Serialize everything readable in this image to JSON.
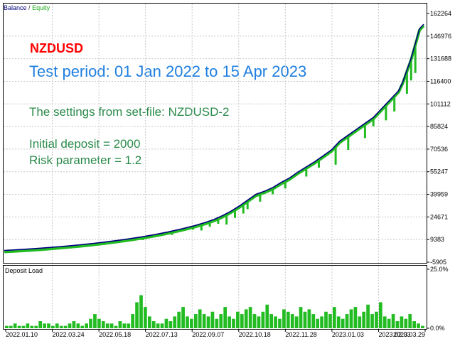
{
  "chart_data": [
    {
      "type": "line",
      "legend": {
        "balance_label": "Balance",
        "separator": "/",
        "equity_label": "Equity",
        "placement": "top-left"
      },
      "colors": {
        "balance": "#00007f",
        "equity": "#22bb22",
        "grid": "#c8c8c8"
      },
      "annotations": {
        "symbol": "NZDUSD",
        "period": "Test period: 01 Jan 2022 to 15 Apr 2023",
        "settings": "The settings from set-file: NZDUSD-2",
        "deposit": "Initial deposit = 2000",
        "risk": "Risk parameter = 1.2"
      },
      "ylim": [
        -5905,
        162264
      ],
      "yticks": [
        "162264",
        "146976",
        "131688",
        "116400",
        "101112",
        "85824",
        "70536",
        "55247",
        "39959",
        "24671",
        "9383",
        "-5905"
      ],
      "xticks": [
        "2022.01.10",
        "2022.03.24",
        "2022.05.18",
        "2022.07.13",
        "2022.09.07",
        "2022.10.18",
        "2022.11.28",
        "2023.01.03",
        "2023.02.03",
        "2023.03.29"
      ],
      "grid": true,
      "balance": [
        [
          0,
          2000
        ],
        [
          3,
          2500
        ],
        [
          6,
          3000
        ],
        [
          9,
          3600
        ],
        [
          12,
          4300
        ],
        [
          15,
          5000
        ],
        [
          18,
          5800
        ],
        [
          21,
          6700
        ],
        [
          24,
          7700
        ],
        [
          27,
          8800
        ],
        [
          30,
          10000
        ],
        [
          33,
          11300
        ],
        [
          36,
          12800
        ],
        [
          39,
          14500
        ],
        [
          42,
          16400
        ],
        [
          45,
          18500
        ],
        [
          48,
          21000
        ],
        [
          50,
          23000
        ],
        [
          52,
          25500
        ],
        [
          54,
          28500
        ],
        [
          56,
          32000
        ],
        [
          58,
          36000
        ],
        [
          60,
          40000
        ],
        [
          62,
          42000
        ],
        [
          64,
          44500
        ],
        [
          66,
          48000
        ],
        [
          68,
          51000
        ],
        [
          70,
          55000
        ],
        [
          72,
          58500
        ],
        [
          74,
          62000
        ],
        [
          76,
          66000
        ],
        [
          78,
          70000
        ],
        [
          80,
          76000
        ],
        [
          82,
          80000
        ],
        [
          84,
          84000
        ],
        [
          86,
          88000
        ],
        [
          88,
          92000
        ],
        [
          90,
          98000
        ],
        [
          92,
          104000
        ],
        [
          94,
          110000
        ],
        [
          95,
          116000
        ],
        [
          96,
          124000
        ],
        [
          97,
          132000
        ],
        [
          98,
          142000
        ],
        [
          99,
          152000
        ],
        [
          100,
          155000
        ]
      ],
      "equity_drawdowns": [
        [
          24,
          5800
        ],
        [
          33,
          9000
        ],
        [
          40,
          12500
        ],
        [
          45,
          16000
        ],
        [
          47,
          15500
        ],
        [
          49,
          18000
        ],
        [
          51,
          20000
        ],
        [
          53,
          19500
        ],
        [
          55,
          24000
        ],
        [
          57,
          27000
        ],
        [
          58,
          30000
        ],
        [
          61,
          35000
        ],
        [
          64,
          40000
        ],
        [
          67,
          44000
        ],
        [
          72,
          52000
        ],
        [
          75,
          58000
        ],
        [
          79,
          60000
        ],
        [
          82,
          70000
        ],
        [
          86,
          78000
        ],
        [
          88,
          86000
        ],
        [
          91,
          90000
        ],
        [
          93,
          96000
        ],
        [
          96,
          108000
        ],
        [
          97,
          117000
        ],
        [
          98,
          122000
        ]
      ]
    },
    {
      "type": "bar",
      "title": "Deposit Load",
      "yticks": [
        "25.0%",
        "0.0%"
      ],
      "ylim": [
        0,
        25
      ],
      "values": [
        1,
        1,
        2,
        1,
        1,
        2,
        1,
        1,
        3,
        2,
        2,
        1,
        2,
        1,
        1,
        2,
        3,
        2,
        1,
        2,
        4,
        6,
        4,
        3,
        2,
        2,
        1,
        3,
        2,
        2,
        6,
        11,
        14,
        9,
        5,
        3,
        2,
        2,
        4,
        3,
        5,
        7,
        9,
        5,
        4,
        6,
        8,
        6,
        5,
        7,
        4,
        6,
        9,
        5,
        4,
        7,
        6,
        8,
        9,
        6,
        5,
        7,
        10,
        6,
        5,
        4,
        8,
        7,
        6,
        5,
        9,
        7,
        8,
        6,
        4,
        5,
        7,
        6,
        9,
        5,
        4,
        6,
        8,
        9,
        5,
        7,
        10,
        6,
        7,
        11,
        5,
        4,
        6,
        3,
        5,
        4,
        6,
        3,
        2,
        1
      ]
    }
  ]
}
